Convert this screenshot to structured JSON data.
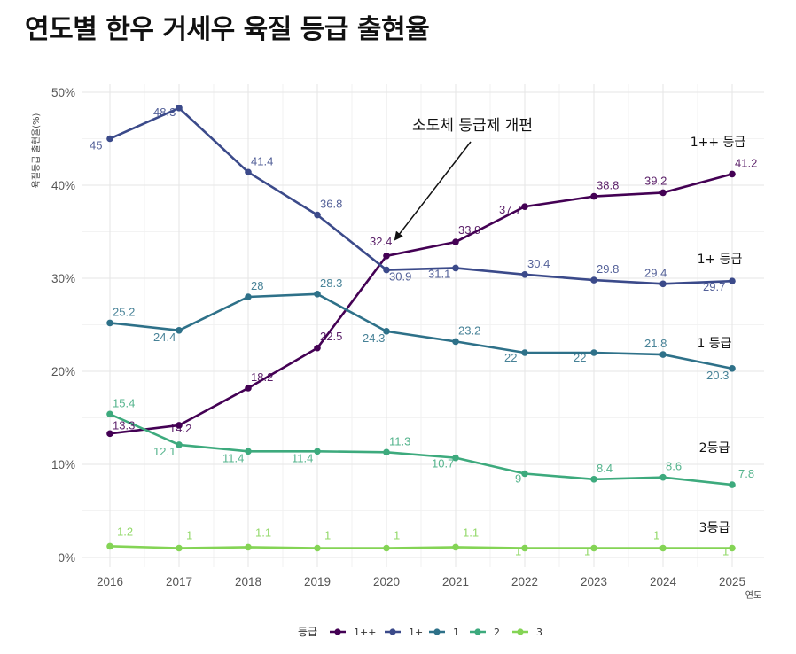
{
  "chart_data": {
    "type": "line",
    "title": "연도별 한우 거세우 육질 등급 출현율",
    "xlabel": "연도",
    "ylabel": "육질등급 출현율(%)",
    "x": [
      2016,
      2017,
      2018,
      2019,
      2020,
      2021,
      2022,
      2023,
      2024,
      2025
    ],
    "ylim": [
      0,
      50
    ],
    "yticks": [
      0,
      10,
      20,
      30,
      40,
      50
    ],
    "ytick_labels": [
      "0%",
      "10%",
      "20%",
      "30%",
      "40%",
      "50%"
    ],
    "grid": true,
    "legend": {
      "title": "등급",
      "placement": "bottom"
    },
    "series": [
      {
        "name": "1++",
        "color": "#440154",
        "annotation": "1++ 등급",
        "values": [
          13.3,
          14.2,
          18.2,
          22.5,
          32.4,
          33.9,
          37.7,
          38.8,
          39.2,
          41.2
        ]
      },
      {
        "name": "1+",
        "color": "#3b4a8a",
        "annotation": "1+ 등급",
        "values": [
          45,
          48.3,
          41.4,
          36.8,
          30.9,
          31.1,
          30.4,
          29.8,
          29.4,
          29.7
        ]
      },
      {
        "name": "1",
        "color": "#2e7189",
        "annotation": "1 등급",
        "values": [
          25.2,
          24.4,
          28,
          28.3,
          24.3,
          23.2,
          22,
          22,
          21.8,
          20.3
        ]
      },
      {
        "name": "2",
        "color": "#3daa7d",
        "annotation": "2등급",
        "values": [
          15.4,
          12.1,
          11.4,
          11.4,
          11.3,
          10.7,
          9,
          8.4,
          8.6,
          7.8
        ]
      },
      {
        "name": "3",
        "color": "#84d455",
        "annotation": "3등급",
        "values": [
          1.2,
          1,
          1.1,
          1,
          1,
          1.1,
          1,
          1,
          1,
          1
        ]
      }
    ],
    "annotations": [
      {
        "text": "소도체 등급제 개편",
        "arrow_to": {
          "x": 2020,
          "y": 32.4
        }
      }
    ]
  }
}
